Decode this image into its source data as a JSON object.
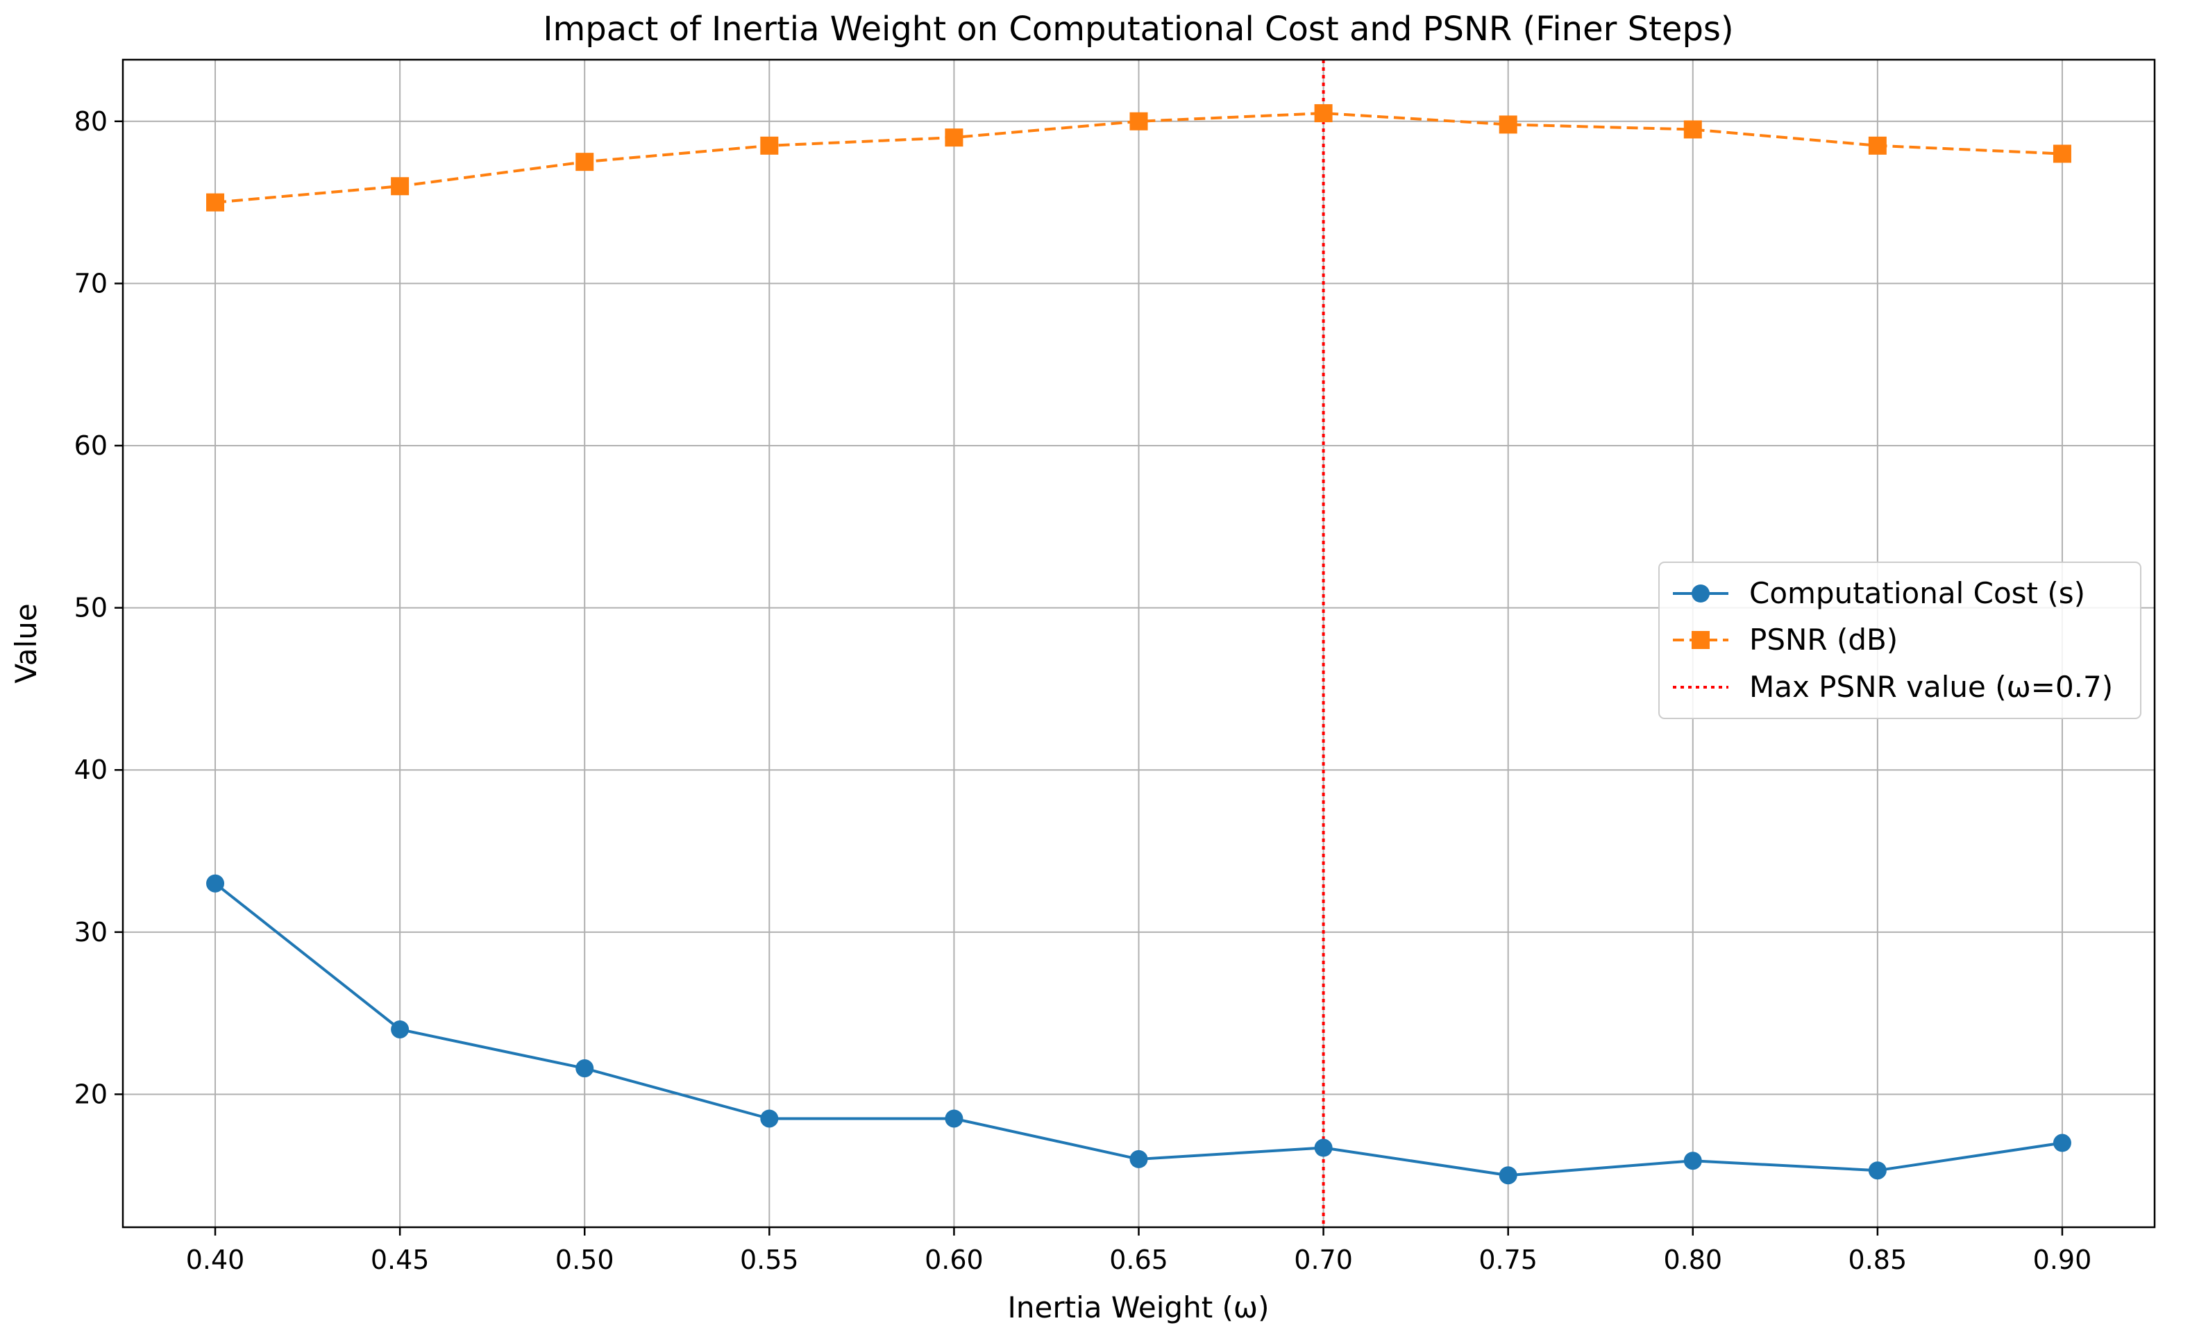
{
  "chart_data": {
    "type": "line",
    "title": "Impact of Inertia Weight on Computational Cost and PSNR (Finer Steps)",
    "xlabel": "Inertia Weight (ω)",
    "ylabel": "Value",
    "x": [
      0.4,
      0.45,
      0.5,
      0.55,
      0.6,
      0.65,
      0.7,
      0.75,
      0.8,
      0.85,
      0.9
    ],
    "x_tick_labels": [
      "0.40",
      "0.45",
      "0.50",
      "0.55",
      "0.60",
      "0.65",
      "0.70",
      "0.75",
      "0.80",
      "0.85",
      "0.90"
    ],
    "y_ticks": [
      20,
      30,
      40,
      50,
      60,
      70,
      80
    ],
    "y_tick_labels": [
      "20",
      "30",
      "40",
      "50",
      "60",
      "70",
      "80"
    ],
    "xlim": [
      0.375,
      0.925
    ],
    "ylim": [
      11.8,
      83.8
    ],
    "grid": true,
    "legend_position": "center-right",
    "series": [
      {
        "name": "Computational Cost (s)",
        "values": [
          33.0,
          24.0,
          21.6,
          18.5,
          18.5,
          16.0,
          16.7,
          15.0,
          15.9,
          15.3,
          17.0
        ],
        "color": "#1f77b4",
        "marker": "circle",
        "linestyle": "solid"
      },
      {
        "name": "PSNR (dB)",
        "values": [
          75.0,
          76.0,
          77.5,
          78.5,
          79.0,
          80.0,
          80.5,
          79.8,
          79.5,
          78.5,
          78.0
        ],
        "color": "#ff7f0e",
        "marker": "square",
        "linestyle": "dashed"
      }
    ],
    "annotations": [
      {
        "type": "vline",
        "x": 0.7,
        "label": "Max PSNR value (ω=0.7)",
        "color": "#ff0000",
        "linestyle": "dotted"
      }
    ]
  }
}
